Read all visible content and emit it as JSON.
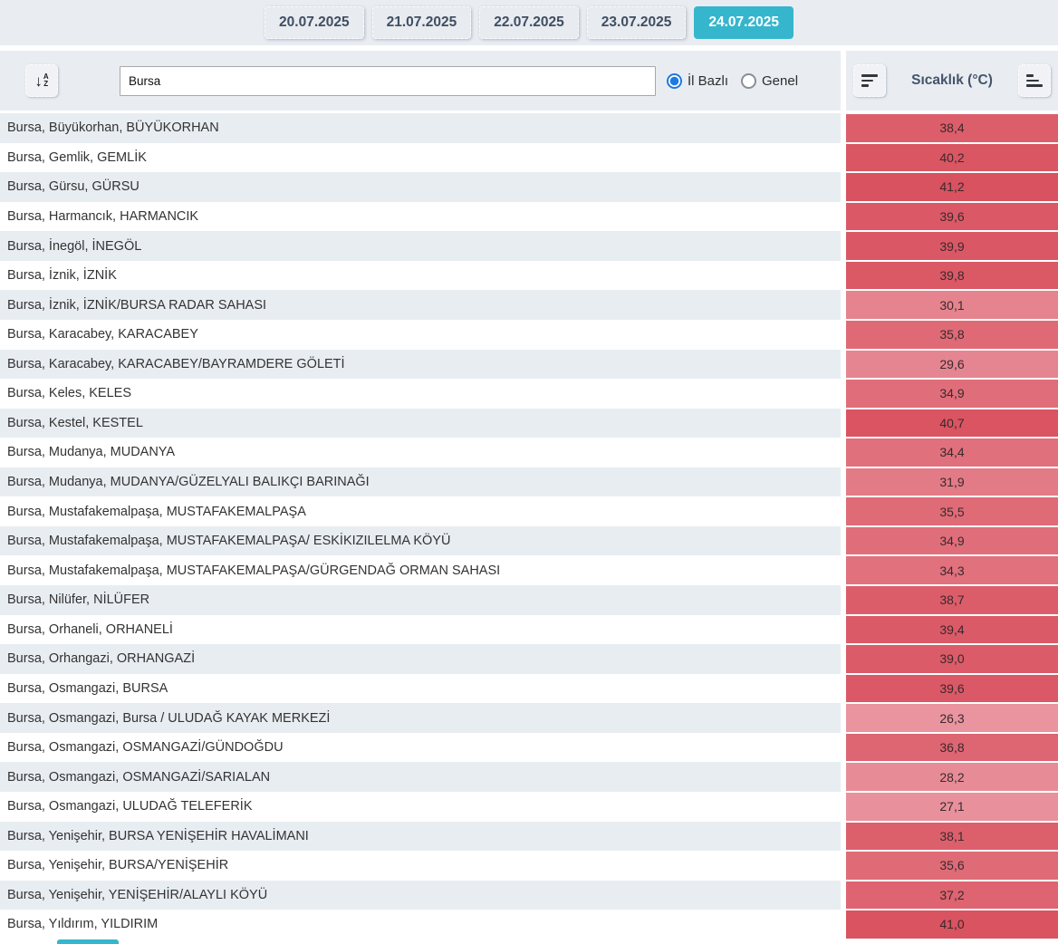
{
  "date_tabs": [
    {
      "label": "20.07.2025",
      "active": false
    },
    {
      "label": "21.07.2025",
      "active": false
    },
    {
      "label": "22.07.2025",
      "active": false
    },
    {
      "label": "23.07.2025",
      "active": false
    },
    {
      "label": "24.07.2025",
      "active": true
    }
  ],
  "toolbar": {
    "sort_az_icon": "sort-alphabetical-icon",
    "az_arrow": "↓",
    "az_top": "A",
    "az_bottom": "Z",
    "search_value": "Bursa",
    "radio_il_bazli_label": "İl Bazlı",
    "radio_genel_label": "Genel",
    "il_bazli_selected": true,
    "genel_selected": false,
    "column_header": "Sıcaklık (°C)",
    "sort_desc_icon": "sort-descending-icon",
    "sort_asc_icon": "sort-ascending-icon"
  },
  "colors": {
    "active_tab": "#35b6cd",
    "panel_bg": "#e9edf2",
    "alt_row_bg": "#e8edf2",
    "header_text": "#44546a",
    "radio_selected": "#1e7ae0",
    "temp_scale_min_color": "#e9949f",
    "temp_scale_max_color": "#d9525f"
  },
  "temp_scale": {
    "min": 26.3,
    "max": 41.2
  },
  "stations": [
    {
      "name": "Bursa, Büyükorhan, BÜYÜKORHAN",
      "temp": "38,4"
    },
    {
      "name": "Bursa, Gemlik, GEMLİK",
      "temp": "40,2"
    },
    {
      "name": "Bursa, Gürsu, GÜRSU",
      "temp": "41,2"
    },
    {
      "name": "Bursa, Harmancık, HARMANCIK",
      "temp": "39,6"
    },
    {
      "name": "Bursa, İnegöl, İNEGÖL",
      "temp": "39,9"
    },
    {
      "name": "Bursa, İznik, İZNİK",
      "temp": "39,8"
    },
    {
      "name": "Bursa, İznik, İZNİK/BURSA RADAR SAHASI",
      "temp": "30,1"
    },
    {
      "name": "Bursa, Karacabey, KARACABEY",
      "temp": "35,8"
    },
    {
      "name": "Bursa, Karacabey, KARACABEY/BAYRAMDERE GÖLETİ",
      "temp": "29,6"
    },
    {
      "name": "Bursa, Keles, KELES",
      "temp": "34,9"
    },
    {
      "name": "Bursa, Kestel, KESTEL",
      "temp": "40,7"
    },
    {
      "name": "Bursa, Mudanya, MUDANYA",
      "temp": "34,4"
    },
    {
      "name": "Bursa, Mudanya, MUDANYA/GÜZELYALI BALIKÇI BARINAĞI",
      "temp": "31,9"
    },
    {
      "name": "Bursa, Mustafakemalpaşa, MUSTAFAKEMALPAŞA",
      "temp": "35,5"
    },
    {
      "name": "Bursa, Mustafakemalpaşa, MUSTAFAKEMALPAŞA/ ESKİKIZILELMA KÖYÜ",
      "temp": "34,9"
    },
    {
      "name": "Bursa, Mustafakemalpaşa, MUSTAFAKEMALPAŞA/GÜRGENDAĞ ORMAN SAHASI",
      "temp": "34,3"
    },
    {
      "name": "Bursa, Nilüfer, NİLÜFER",
      "temp": "38,7"
    },
    {
      "name": "Bursa, Orhaneli, ORHANELİ",
      "temp": "39,4"
    },
    {
      "name": "Bursa, Orhangazi, ORHANGAZİ",
      "temp": "39,0"
    },
    {
      "name": "Bursa, Osmangazi, BURSA",
      "temp": "39,6"
    },
    {
      "name": "Bursa, Osmangazi, Bursa / ULUDAĞ KAYAK MERKEZİ",
      "temp": "26,3"
    },
    {
      "name": "Bursa, Osmangazi, OSMANGAZİ/GÜNDOĞDU",
      "temp": "36,8"
    },
    {
      "name": "Bursa, Osmangazi, OSMANGAZİ/SARIALAN",
      "temp": "28,2"
    },
    {
      "name": "Bursa, Osmangazi, ULUDAĞ TELEFERİK",
      "temp": "27,1"
    },
    {
      "name": "Bursa, Yenişehir, BURSA YENİŞEHİR HAVALİMANI",
      "temp": "38,1"
    },
    {
      "name": "Bursa, Yenişehir, BURSA/YENİŞEHİR",
      "temp": "35,6"
    },
    {
      "name": "Bursa, Yenişehir, YENİŞEHİR/ALAYLI KÖYÜ",
      "temp": "37,2"
    },
    {
      "name": "Bursa, Yıldırım, YILDIRIM",
      "temp": "41,0"
    }
  ]
}
